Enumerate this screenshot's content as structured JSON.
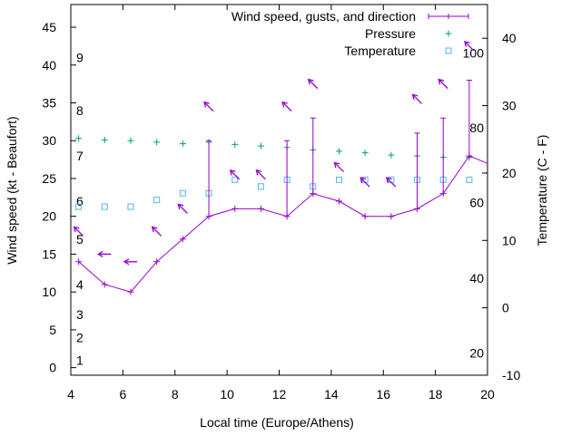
{
  "chart_data": {
    "type": "line",
    "title": "",
    "xlabel": "Local time (Europe/Athens)",
    "ylabel": "Wind speed (kt - Beaufort)",
    "y2label": "Temperature (C - F)",
    "xlim": [
      4,
      20
    ],
    "ylim": [
      -1,
      48
    ],
    "y2lim": [
      -10,
      45
    ],
    "x_ticks": [
      4,
      6,
      8,
      10,
      12,
      14,
      16,
      18,
      20
    ],
    "y_ticks": [
      0,
      5,
      10,
      15,
      20,
      25,
      30,
      35,
      40,
      45
    ],
    "y2_ticks": [
      -10,
      0,
      10,
      20,
      30,
      40
    ],
    "beaufort_labels": [
      {
        "label": "1",
        "y": 1
      },
      {
        "label": "2",
        "y": 4
      },
      {
        "label": "3",
        "y": 7
      },
      {
        "label": "4",
        "y": 11
      },
      {
        "label": "5",
        "y": 17
      },
      {
        "label": "6",
        "y": 22
      },
      {
        "label": "7",
        "y": 28
      },
      {
        "label": "8",
        "y": 34
      },
      {
        "label": "9",
        "y": 41
      }
    ],
    "fahrenheit_labels": [
      {
        "label": "20",
        "y2": -6.7
      },
      {
        "label": "40",
        "y2": 4.4
      },
      {
        "label": "60",
        "y2": 15.6
      },
      {
        "label": "80",
        "y2": 26.7
      },
      {
        "label": "100",
        "y2": 37.8
      }
    ],
    "legend_position": "top-right",
    "series": [
      {
        "name": "Wind speed, gusts, and direction",
        "color": "#9400d3",
        "x": [
          4.3,
          5.3,
          6.3,
          7.3,
          8.3,
          9.3,
          10.3,
          11.3,
          12.3,
          13.3,
          14.3,
          15.3,
          16.3,
          17.3,
          18.3,
          19.3,
          20.0
        ],
        "values": [
          14,
          11,
          10,
          14,
          17,
          20,
          21,
          21,
          20,
          23,
          22,
          20,
          20,
          21,
          23,
          28,
          27
        ],
        "gusts": [
          null,
          null,
          null,
          null,
          null,
          30,
          null,
          null,
          30,
          33,
          null,
          null,
          null,
          31,
          33,
          38,
          null
        ],
        "direction_arrows": [
          {
            "x": 4.3,
            "y": 18,
            "dir": "nw"
          },
          {
            "x": 5.3,
            "y": 15,
            "dir": "w"
          },
          {
            "x": 6.3,
            "y": 14,
            "dir": "w"
          },
          {
            "x": 7.3,
            "y": 18,
            "dir": "nw"
          },
          {
            "x": 8.3,
            "y": 21,
            "dir": "nw"
          },
          {
            "x": 9.3,
            "y": 34.5,
            "dir": "nw"
          },
          {
            "x": 10.3,
            "y": 25.5,
            "dir": "nw"
          },
          {
            "x": 11.3,
            "y": 25.5,
            "dir": "nw"
          },
          {
            "x": 12.3,
            "y": 34.5,
            "dir": "nw"
          },
          {
            "x": 13.3,
            "y": 37.5,
            "dir": "nw"
          },
          {
            "x": 14.3,
            "y": 26.5,
            "dir": "nw"
          },
          {
            "x": 15.3,
            "y": 24.5,
            "dir": "nw"
          },
          {
            "x": 16.3,
            "y": 24.5,
            "dir": "nw"
          },
          {
            "x": 17.3,
            "y": 35.5,
            "dir": "nw"
          },
          {
            "x": 18.3,
            "y": 37.5,
            "dir": "nw"
          },
          {
            "x": 19.3,
            "y": 42.5,
            "dir": "nw"
          }
        ]
      },
      {
        "name": "Pressure",
        "color": "#009e73",
        "x": [
          4.3,
          5.3,
          6.3,
          7.3,
          8.3,
          9.3,
          10.3,
          11.3,
          12.3,
          13.3,
          14.3,
          15.3,
          16.3,
          17.3,
          18.3,
          19.3
        ],
        "values": [
          30.3,
          30.1,
          30.0,
          29.8,
          29.6,
          29.8,
          29.5,
          29.3,
          29.1,
          28.8,
          28.6,
          28.4,
          28.1,
          28.0,
          27.8,
          27.8
        ]
      },
      {
        "name": "Temperature",
        "color": "#56b4e9",
        "axis": "y2",
        "x": [
          4.3,
          5.3,
          6.3,
          7.3,
          8.3,
          9.3,
          10.3,
          11.3,
          12.3,
          13.3,
          14.3,
          15.3,
          16.3,
          17.3,
          18.3,
          19.3
        ],
        "values": [
          15,
          15,
          15,
          16,
          17,
          17,
          19,
          18,
          19,
          18,
          19,
          19,
          19,
          19,
          19,
          19
        ]
      }
    ]
  }
}
